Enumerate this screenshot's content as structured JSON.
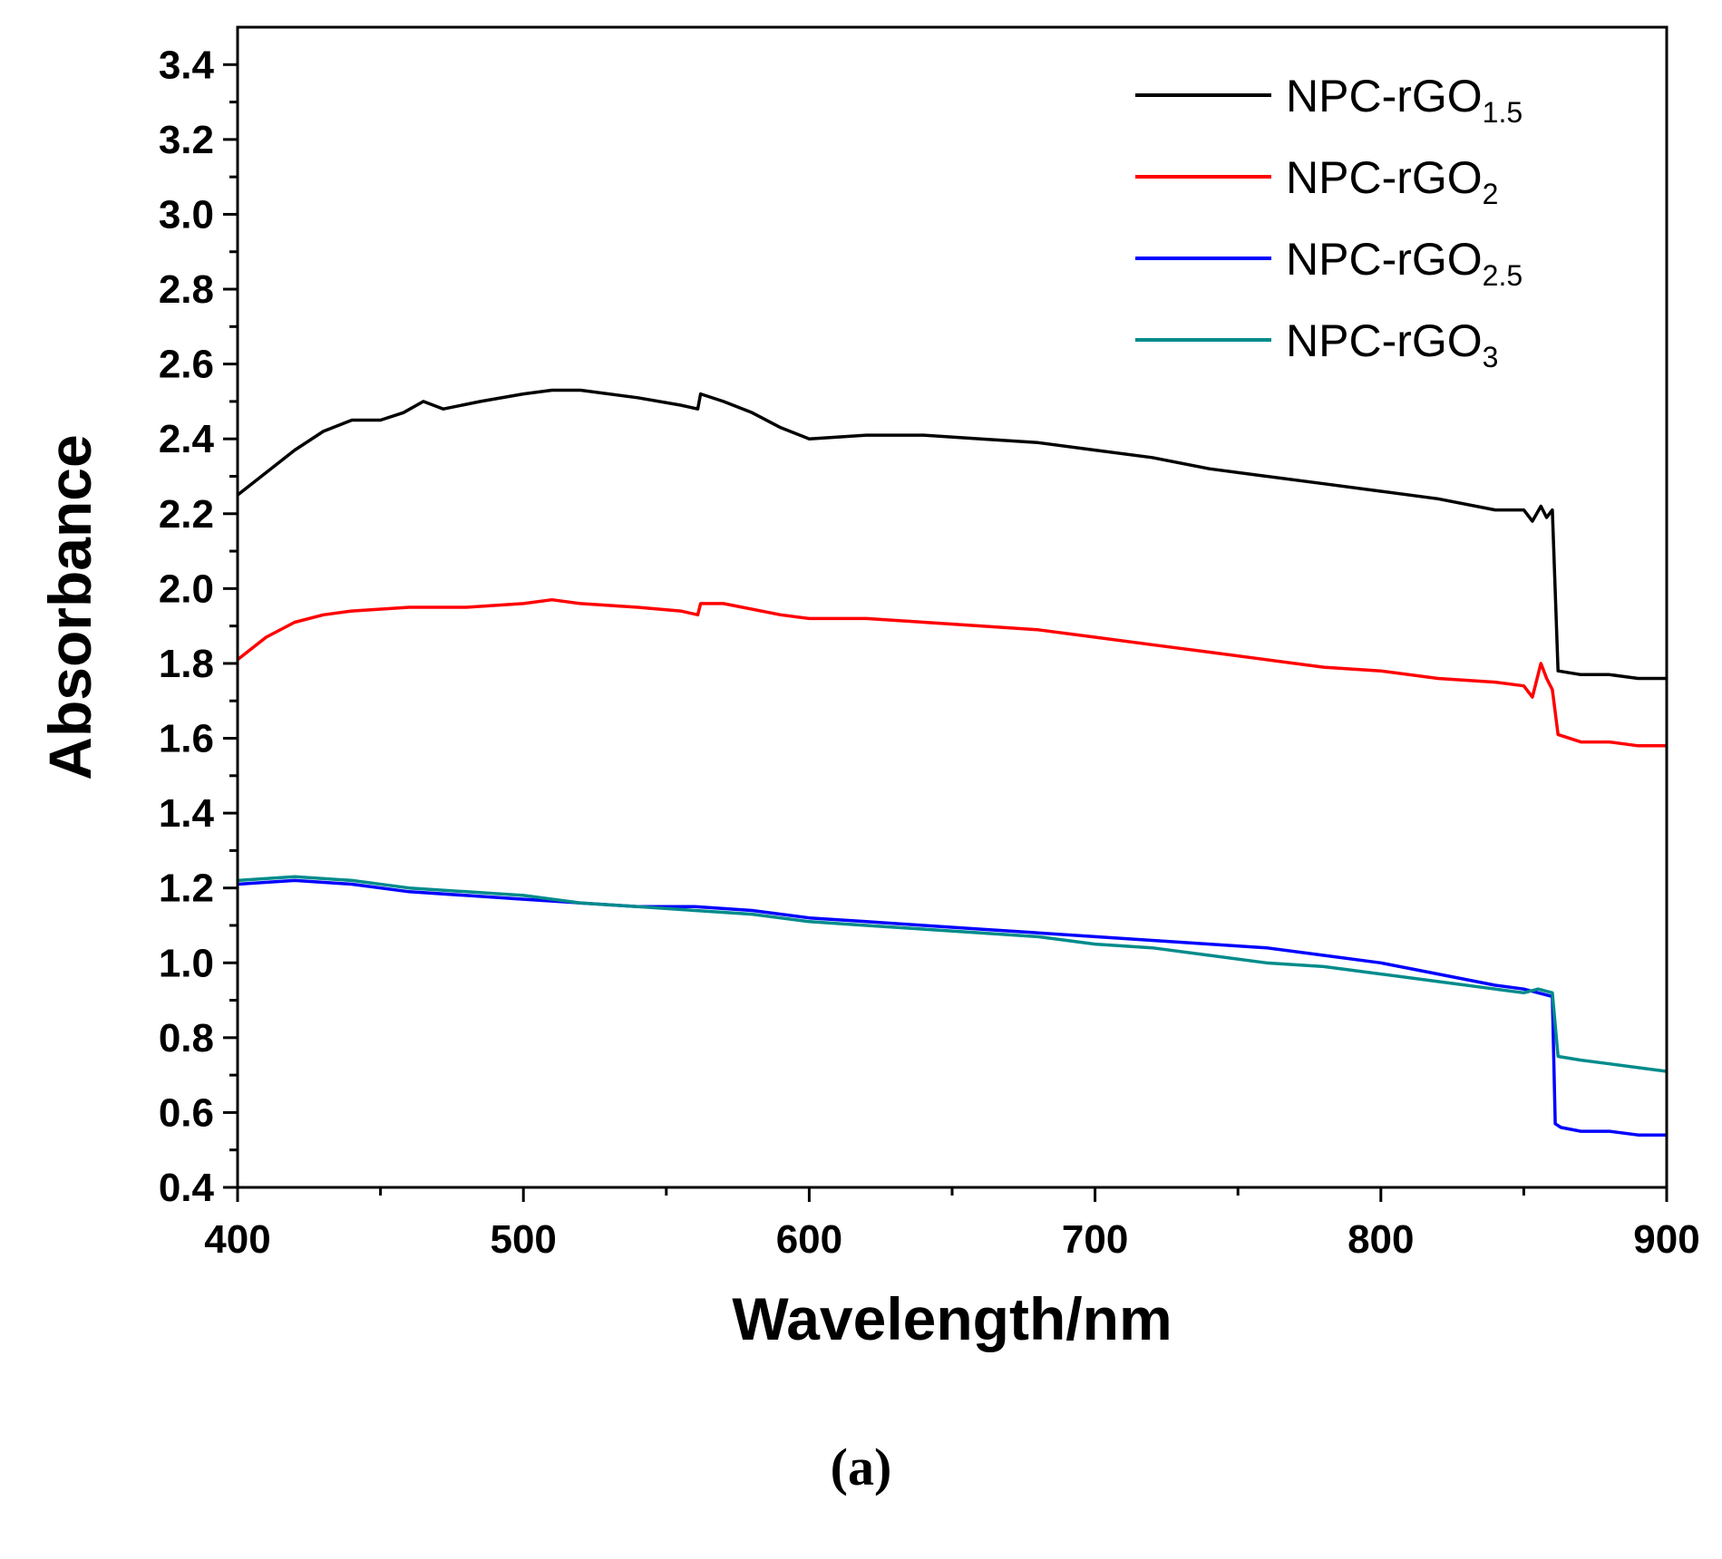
{
  "chart_data": {
    "type": "line",
    "title": "",
    "xlabel": "Wavelength/nm",
    "ylabel": "Absorbance",
    "xlim": [
      400,
      900
    ],
    "ylim": [
      0.4,
      3.5
    ],
    "x_ticks": [
      "400",
      "500",
      "600",
      "700",
      "800",
      "900"
    ],
    "y_ticks": [
      "0.4",
      "0.6",
      "0.8",
      "1.0",
      "1.2",
      "1.4",
      "1.6",
      "1.8",
      "2.0",
      "2.2",
      "2.4",
      "2.6",
      "2.8",
      "3.0",
      "3.2",
      "3.4"
    ],
    "grid": false,
    "legend_position": "top-right",
    "series": [
      {
        "name": "NPC-rGO",
        "subscript": "1.5",
        "color": "#000000",
        "points": [
          [
            400,
            2.25
          ],
          [
            410,
            2.31
          ],
          [
            420,
            2.37
          ],
          [
            430,
            2.42
          ],
          [
            440,
            2.45
          ],
          [
            450,
            2.45
          ],
          [
            458,
            2.47
          ],
          [
            465,
            2.5
          ],
          [
            472,
            2.48
          ],
          [
            485,
            2.5
          ],
          [
            500,
            2.52
          ],
          [
            510,
            2.53
          ],
          [
            520,
            2.53
          ],
          [
            540,
            2.51
          ],
          [
            555,
            2.49
          ],
          [
            561,
            2.48
          ],
          [
            562,
            2.52
          ],
          [
            570,
            2.5
          ],
          [
            580,
            2.47
          ],
          [
            590,
            2.43
          ],
          [
            600,
            2.4
          ],
          [
            620,
            2.41
          ],
          [
            640,
            2.41
          ],
          [
            660,
            2.4
          ],
          [
            680,
            2.39
          ],
          [
            700,
            2.37
          ],
          [
            720,
            2.35
          ],
          [
            740,
            2.32
          ],
          [
            760,
            2.3
          ],
          [
            780,
            2.28
          ],
          [
            800,
            2.26
          ],
          [
            820,
            2.24
          ],
          [
            840,
            2.21
          ],
          [
            850,
            2.21
          ],
          [
            853,
            2.18
          ],
          [
            856,
            2.22
          ],
          [
            858,
            2.19
          ],
          [
            860,
            2.21
          ],
          [
            862,
            1.78
          ],
          [
            870,
            1.77
          ],
          [
            880,
            1.77
          ],
          [
            890,
            1.76
          ],
          [
            900,
            1.76
          ]
        ]
      },
      {
        "name": "NPC-rGO",
        "subscript": "2",
        "color": "#ff0000",
        "points": [
          [
            400,
            1.81
          ],
          [
            410,
            1.87
          ],
          [
            420,
            1.91
          ],
          [
            430,
            1.93
          ],
          [
            440,
            1.94
          ],
          [
            460,
            1.95
          ],
          [
            480,
            1.95
          ],
          [
            500,
            1.96
          ],
          [
            510,
            1.97
          ],
          [
            520,
            1.96
          ],
          [
            540,
            1.95
          ],
          [
            555,
            1.94
          ],
          [
            561,
            1.93
          ],
          [
            562,
            1.96
          ],
          [
            570,
            1.96
          ],
          [
            590,
            1.93
          ],
          [
            600,
            1.92
          ],
          [
            620,
            1.92
          ],
          [
            640,
            1.91
          ],
          [
            660,
            1.9
          ],
          [
            680,
            1.89
          ],
          [
            700,
            1.87
          ],
          [
            720,
            1.85
          ],
          [
            740,
            1.83
          ],
          [
            760,
            1.81
          ],
          [
            780,
            1.79
          ],
          [
            800,
            1.78
          ],
          [
            820,
            1.76
          ],
          [
            840,
            1.75
          ],
          [
            850,
            1.74
          ],
          [
            853,
            1.71
          ],
          [
            856,
            1.8
          ],
          [
            858,
            1.76
          ],
          [
            860,
            1.73
          ],
          [
            862,
            1.61
          ],
          [
            870,
            1.59
          ],
          [
            880,
            1.59
          ],
          [
            890,
            1.58
          ],
          [
            900,
            1.58
          ]
        ]
      },
      {
        "name": "NPC-rGO",
        "subscript": "2.5",
        "color": "#0000ff",
        "points": [
          [
            400,
            1.21
          ],
          [
            420,
            1.22
          ],
          [
            440,
            1.21
          ],
          [
            460,
            1.19
          ],
          [
            480,
            1.18
          ],
          [
            500,
            1.17
          ],
          [
            520,
            1.16
          ],
          [
            540,
            1.15
          ],
          [
            560,
            1.15
          ],
          [
            580,
            1.14
          ],
          [
            600,
            1.12
          ],
          [
            620,
            1.11
          ],
          [
            640,
            1.1
          ],
          [
            660,
            1.09
          ],
          [
            680,
            1.08
          ],
          [
            700,
            1.07
          ],
          [
            720,
            1.06
          ],
          [
            740,
            1.05
          ],
          [
            760,
            1.04
          ],
          [
            780,
            1.02
          ],
          [
            800,
            1.0
          ],
          [
            820,
            0.97
          ],
          [
            840,
            0.94
          ],
          [
            850,
            0.93
          ],
          [
            855,
            0.92
          ],
          [
            860,
            0.91
          ],
          [
            861,
            0.57
          ],
          [
            863,
            0.56
          ],
          [
            870,
            0.55
          ],
          [
            880,
            0.55
          ],
          [
            890,
            0.54
          ],
          [
            900,
            0.54
          ]
        ]
      },
      {
        "name": "NPC-rGO",
        "subscript": "3",
        "color": "#008b8b",
        "points": [
          [
            400,
            1.22
          ],
          [
            420,
            1.23
          ],
          [
            440,
            1.22
          ],
          [
            460,
            1.2
          ],
          [
            480,
            1.19
          ],
          [
            500,
            1.18
          ],
          [
            520,
            1.16
          ],
          [
            540,
            1.15
          ],
          [
            560,
            1.14
          ],
          [
            580,
            1.13
          ],
          [
            600,
            1.11
          ],
          [
            620,
            1.1
          ],
          [
            640,
            1.09
          ],
          [
            660,
            1.08
          ],
          [
            680,
            1.07
          ],
          [
            700,
            1.05
          ],
          [
            720,
            1.04
          ],
          [
            740,
            1.02
          ],
          [
            760,
            1.0
          ],
          [
            780,
            0.99
          ],
          [
            800,
            0.97
          ],
          [
            820,
            0.95
          ],
          [
            840,
            0.93
          ],
          [
            850,
            0.92
          ],
          [
            855,
            0.93
          ],
          [
            860,
            0.92
          ],
          [
            862,
            0.75
          ],
          [
            870,
            0.74
          ],
          [
            880,
            0.73
          ],
          [
            890,
            0.72
          ],
          [
            900,
            0.71
          ]
        ]
      }
    ]
  },
  "panel_label": "(a)"
}
